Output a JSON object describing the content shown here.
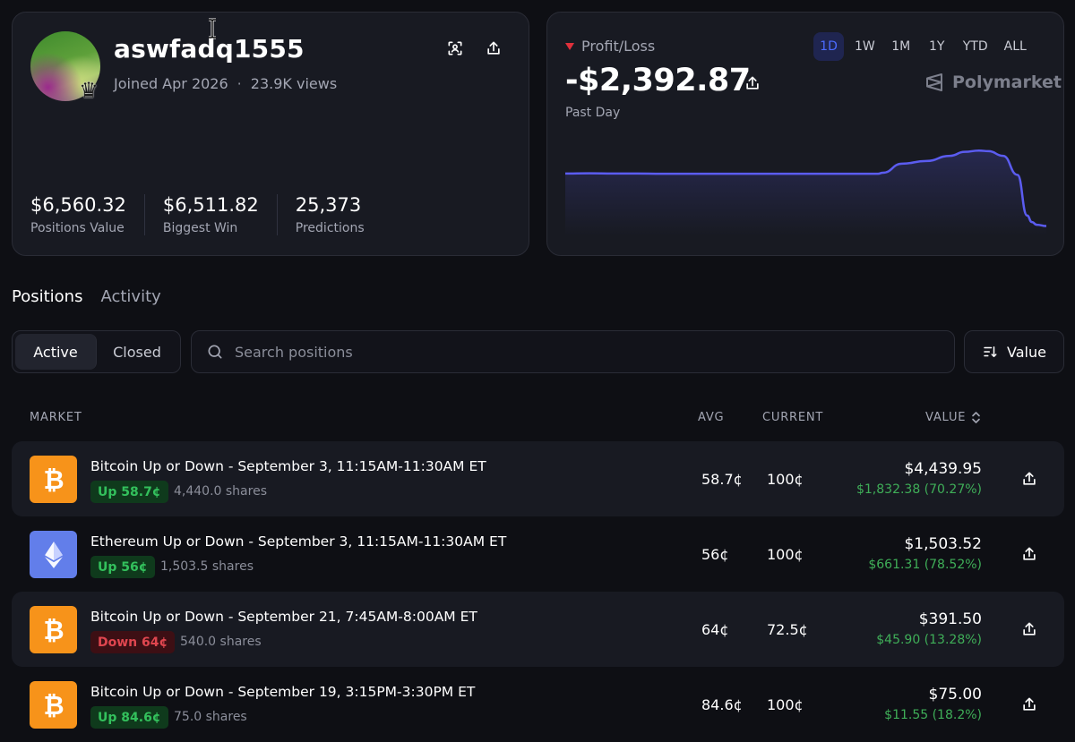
{
  "profile": {
    "username": "aswfadq1555",
    "joined": "Joined Apr 2026",
    "separator": "·",
    "views": "23.9K views",
    "stats": [
      {
        "value": "$6,560.32",
        "label": "Positions Value"
      },
      {
        "value": "$6,511.82",
        "label": "Biggest Win"
      },
      {
        "value": "25,373",
        "label": "Predictions"
      }
    ],
    "icons": {
      "qr": "scan-icon",
      "share": "share-icon",
      "badge": "crown-icon"
    }
  },
  "pnl": {
    "label": "Profit/Loss",
    "value": "-$2,392.87",
    "period": "Past Day",
    "ranges": [
      "1D",
      "1W",
      "1M",
      "1Y",
      "YTD",
      "ALL"
    ],
    "active_range": "1D",
    "brand": "Polymarket",
    "colors": {
      "negative": "#e0303b",
      "line": "#5b5cf0",
      "accent": "#4c6bff"
    },
    "chart_data": {
      "type": "area",
      "x": [
        0,
        5,
        10,
        15,
        20,
        25,
        30,
        35,
        40,
        45,
        50,
        55,
        60,
        65,
        66,
        70,
        75,
        80,
        83,
        86,
        88,
        91,
        94,
        96,
        97,
        98,
        100
      ],
      "y": [
        1.0,
        1.2,
        1.0,
        1.0,
        0.8,
        0.8,
        0.8,
        0.8,
        0.8,
        0.8,
        0.8,
        0.8,
        0.8,
        0.8,
        1.6,
        8.5,
        10.5,
        14.5,
        17.5,
        18.5,
        18.0,
        14.5,
        0,
        -31,
        -36,
        -38,
        -39
      ],
      "y_axis_visible": false,
      "x_axis_visible": false,
      "grid": false
    }
  },
  "tabs": [
    {
      "label": "Positions",
      "active": true
    },
    {
      "label": "Activity",
      "active": false
    }
  ],
  "filters": {
    "segments": [
      {
        "label": "Active",
        "active": true
      },
      {
        "label": "Closed",
        "active": false
      }
    ],
    "search_placeholder": "Search positions",
    "sort_label": "Value"
  },
  "table": {
    "headers": {
      "market": "MARKET",
      "avg": "AVG",
      "current": "CURRENT",
      "value": "VALUE"
    },
    "rows": [
      {
        "coin": "bitcoin",
        "title": "Bitcoin Up or Down - September 3, 11:15AM-11:30AM ET",
        "outcome": "Up 58.7¢",
        "direction": "up",
        "shares": "4,440.0 shares",
        "avg": "58.7¢",
        "current": "100¢",
        "value": "$4,439.95",
        "pnl": "$1,832.38 (70.27%)"
      },
      {
        "coin": "ethereum",
        "title": "Ethereum Up or Down - September 3, 11:15AM-11:30AM ET",
        "outcome": "Up 56¢",
        "direction": "up",
        "shares": "1,503.5 shares",
        "avg": "56¢",
        "current": "100¢",
        "value": "$1,503.52",
        "pnl": "$661.31 (78.52%)"
      },
      {
        "coin": "bitcoin",
        "title": "Bitcoin Up or Down - September 21, 7:45AM-8:00AM ET",
        "outcome": "Down 64¢",
        "direction": "down",
        "shares": "540.0 shares",
        "avg": "64¢",
        "current": "72.5¢",
        "value": "$391.50",
        "pnl": "$45.90 (13.28%)"
      },
      {
        "coin": "bitcoin",
        "title": "Bitcoin Up or Down - September 19, 3:15PM-3:30PM ET",
        "outcome": "Up 84.6¢",
        "direction": "up",
        "shares": "75.0 shares",
        "avg": "84.6¢",
        "current": "100¢",
        "value": "$75.00",
        "pnl": "$11.55 (18.2%)"
      }
    ]
  }
}
